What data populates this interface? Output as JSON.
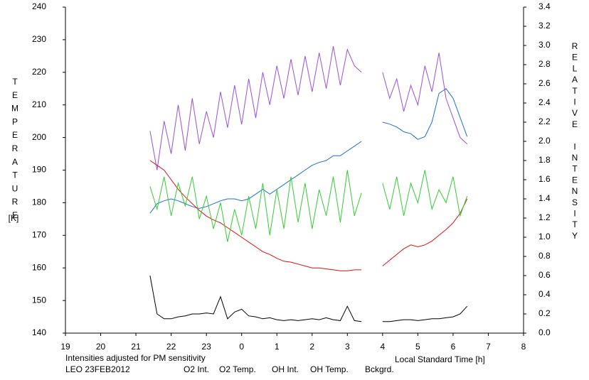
{
  "chart_data": {
    "type": "line",
    "ylabel": "TEMPERATURE",
    "ylabel_unit": "[K]",
    "y2label": "RELATIVE INTENSITY",
    "xlabel": "Local Standard Time [h]",
    "note": "Intensities adjusted for PM sensitivity",
    "note_color": "#22cc22",
    "station": "LEO 23FEB2012",
    "xlim": [
      19,
      32
    ],
    "xticks": [
      19,
      20,
      21,
      22,
      23,
      {
        "value": 24,
        "label": "0"
      },
      {
        "value": 25,
        "label": "1"
      },
      {
        "value": 26,
        "label": "2"
      },
      {
        "value": 27,
        "label": "3"
      },
      {
        "value": 28,
        "label": "4"
      },
      {
        "value": 29,
        "label": "5"
      },
      {
        "value": 30,
        "label": "6"
      },
      {
        "value": 31,
        "label": "7"
      },
      {
        "value": 32,
        "label": "8"
      }
    ],
    "ylim": [
      140,
      240
    ],
    "yticks": [
      140,
      150,
      160,
      170,
      180,
      190,
      200,
      210,
      220,
      230,
      240
    ],
    "y2lim": [
      0,
      3.4
    ],
    "y2ticks": [
      {
        "value": 0,
        "label": "0.0"
      },
      0.2,
      0.4,
      0.6,
      0.8,
      {
        "value": 1,
        "label": "1.0"
      },
      1.2,
      1.4,
      1.6,
      1.8,
      {
        "value": 2,
        "label": "2.0"
      },
      2.2,
      2.4,
      2.6,
      2.8,
      {
        "value": 3,
        "label": "3.0"
      },
      3.2,
      3.4
    ],
    "x": [
      21.4,
      21.6,
      21.8,
      22.0,
      22.2,
      22.4,
      22.6,
      22.8,
      23.0,
      23.2,
      23.4,
      23.6,
      23.8,
      24.0,
      24.2,
      24.4,
      24.6,
      24.8,
      25.0,
      25.2,
      25.4,
      25.6,
      25.8,
      26.0,
      26.2,
      26.4,
      26.6,
      26.8,
      27.0,
      27.2,
      27.4,
      27.6,
      27.8,
      28.0,
      28.2,
      28.4,
      28.6,
      28.8,
      29.0,
      29.2,
      29.4,
      29.6,
      29.8,
      30.0,
      30.2,
      30.4
    ],
    "series": [
      {
        "name": "O2 Int.",
        "color": "#1a6fd6",
        "axis": "y2",
        "values": [
          1.25,
          1.35,
          1.38,
          1.4,
          1.38,
          1.35,
          1.32,
          1.3,
          1.32,
          1.35,
          1.38,
          1.4,
          1.4,
          1.38,
          1.4,
          1.45,
          1.5,
          1.45,
          1.5,
          1.55,
          1.6,
          1.65,
          1.7,
          1.75,
          1.78,
          1.8,
          1.85,
          1.85,
          1.9,
          1.95,
          2.0,
          null,
          null,
          2.2,
          2.18,
          2.15,
          2.1,
          2.08,
          2.02,
          2.05,
          2.2,
          2.5,
          2.55,
          2.45,
          2.25,
          2.05
        ]
      },
      {
        "name": "O2 Temp.",
        "color": "#9b4fd6",
        "values": [
          202,
          190,
          205,
          195,
          210,
          196,
          212,
          198,
          208,
          200,
          214,
          203,
          216,
          204,
          218,
          206,
          220,
          210,
          222,
          212,
          224,
          213,
          225,
          214,
          226,
          215,
          228,
          216,
          227,
          222,
          220,
          null,
          null,
          220,
          212,
          218,
          208,
          216,
          210,
          222,
          214,
          226,
          212,
          206,
          200,
          198
        ]
      },
      {
        "name": "OH Int.",
        "color": "#dd1111",
        "axis": "y2",
        "values": [
          1.8,
          1.75,
          1.7,
          1.6,
          1.5,
          1.42,
          1.35,
          1.28,
          1.22,
          1.18,
          1.15,
          1.1,
          1.05,
          1.0,
          0.95,
          0.9,
          0.85,
          0.82,
          0.78,
          0.75,
          0.74,
          0.72,
          0.7,
          0.68,
          0.68,
          0.67,
          0.66,
          0.65,
          0.65,
          0.66,
          0.66,
          null,
          null,
          0.7,
          0.76,
          0.82,
          0.88,
          0.92,
          0.9,
          0.92,
          0.96,
          1.02,
          1.08,
          1.15,
          1.25,
          1.4
        ]
      },
      {
        "name": "OH Temp.",
        "color": "#33cc33",
        "values": [
          185,
          178,
          188,
          176,
          186,
          179,
          188,
          175,
          182,
          172,
          180,
          168,
          178,
          170,
          182,
          172,
          186,
          170,
          184,
          172,
          188,
          174,
          186,
          172,
          184,
          176,
          188,
          174,
          190,
          176,
          183,
          null,
          null,
          186,
          178,
          188,
          176,
          186,
          180,
          190,
          178,
          184,
          180,
          188,
          176,
          182
        ]
      },
      {
        "name": "Bckgrd.",
        "color": "#000000",
        "axis": "y2",
        "values": [
          0.6,
          0.2,
          0.15,
          0.15,
          0.17,
          0.18,
          0.2,
          0.2,
          0.21,
          0.2,
          0.38,
          0.15,
          0.22,
          0.25,
          0.18,
          0.17,
          0.15,
          0.16,
          0.14,
          0.13,
          0.14,
          0.13,
          0.14,
          0.15,
          0.14,
          0.16,
          0.14,
          0.13,
          0.28,
          0.13,
          0.12,
          null,
          null,
          0.12,
          0.12,
          0.13,
          0.14,
          0.14,
          0.13,
          0.14,
          0.15,
          0.15,
          0.16,
          0.17,
          0.2,
          0.28
        ]
      }
    ]
  }
}
